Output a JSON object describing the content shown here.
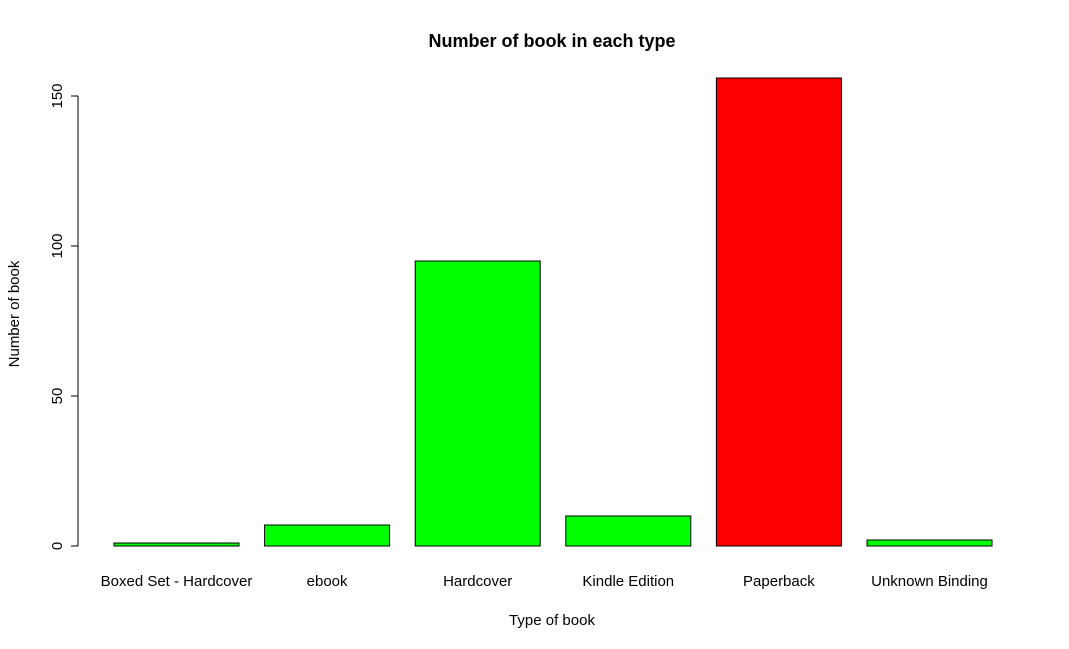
{
  "chart_data": {
    "type": "bar",
    "title": "Number of book in each type",
    "xlabel": "Type of book",
    "ylabel": "Number of book",
    "categories": [
      "Boxed Set - Hardcover",
      "ebook",
      "Hardcover",
      "Kindle Edition",
      "Paperback",
      "Unknown Binding"
    ],
    "values": [
      1,
      7,
      95,
      10,
      156,
      2
    ],
    "colors": [
      "#00ff00",
      "#00ff00",
      "#00ff00",
      "#00ff00",
      "#ff0000",
      "#00ff00"
    ],
    "ylim": [
      0,
      156
    ],
    "yticks": [
      "0",
      "50",
      "100",
      "150"
    ],
    "grid": false,
    "legend": "none"
  }
}
